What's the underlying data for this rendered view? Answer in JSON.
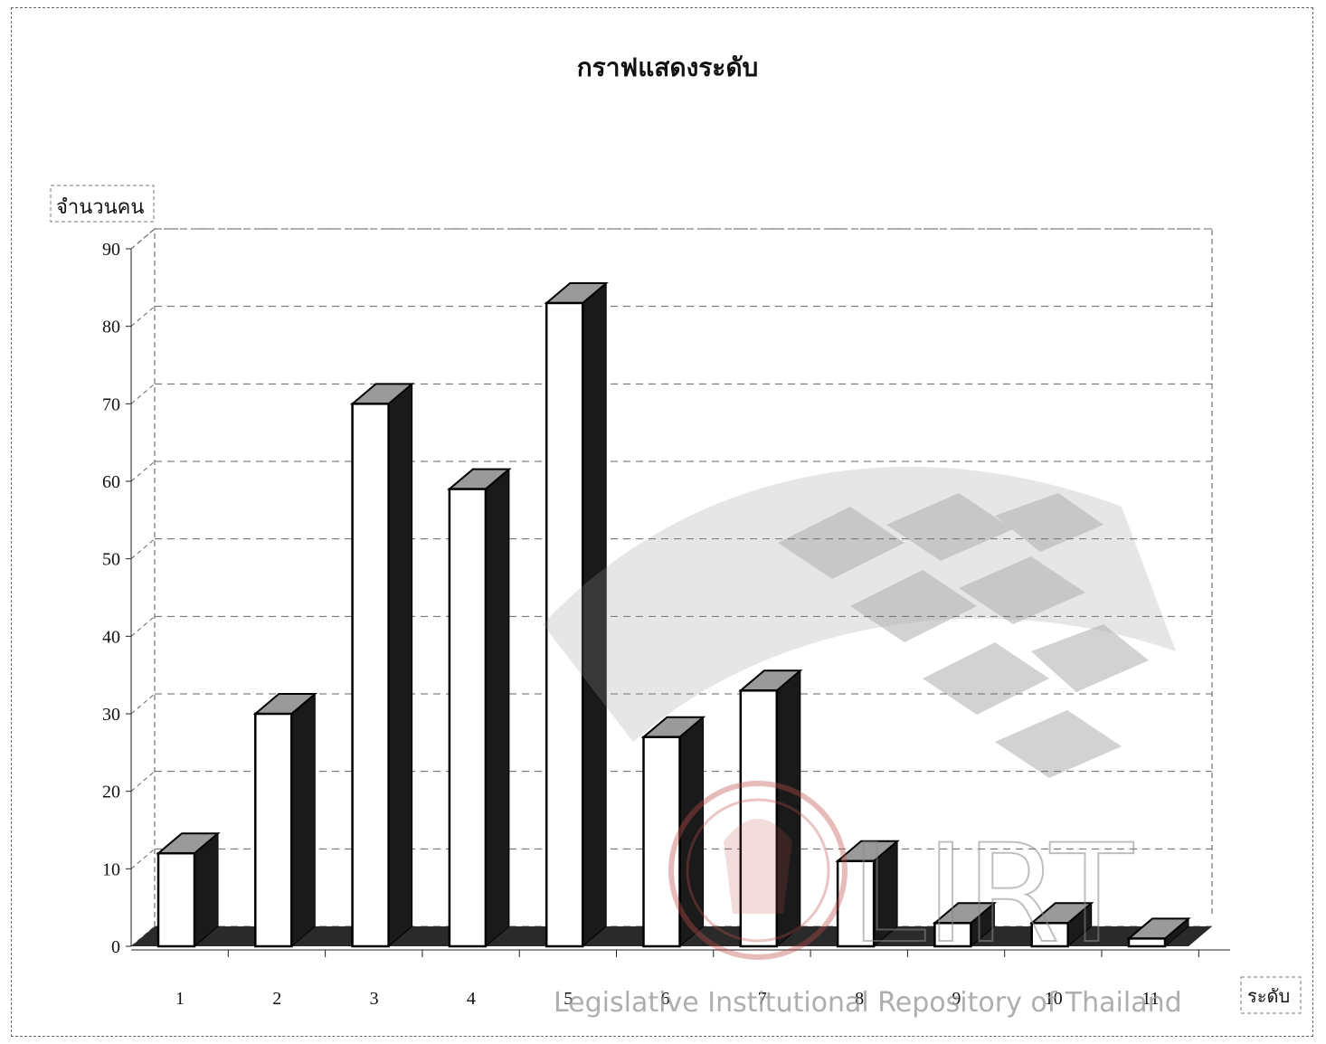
{
  "chart_data": {
    "type": "bar",
    "title": "กราฟแสดงระดับ",
    "ylabel": "จำนวนคน",
    "xlabel": "ระดับ",
    "categories": [
      "1",
      "2",
      "3",
      "4",
      "5",
      "6",
      "7",
      "8",
      "9",
      "10",
      "11"
    ],
    "values": [
      12,
      30,
      70,
      59,
      83,
      27,
      33,
      11,
      3,
      3,
      1
    ],
    "ylim": [
      0,
      90
    ],
    "yticks": [
      0,
      10,
      20,
      30,
      40,
      50,
      60,
      70,
      80,
      90
    ],
    "grid": true,
    "style": "3d-column"
  },
  "watermark": {
    "letters": "LIRT",
    "text": "Legislative Institutional Repository of Thailand"
  },
  "colors": {
    "bar_front": "#ffffff",
    "bar_side": "#1a1a1a",
    "bar_top": "#9a9a9a",
    "floor": "#2a2a2a",
    "watermark": "#8a8a8a",
    "seal": "#c0504d"
  }
}
